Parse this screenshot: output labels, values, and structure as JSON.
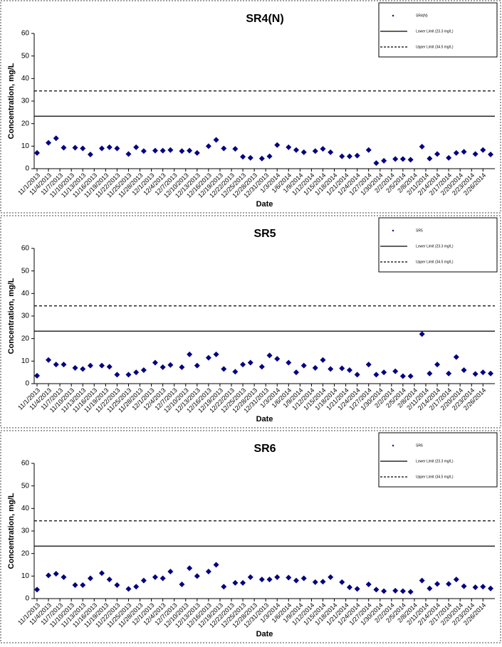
{
  "chart_data": [
    {
      "type": "scatter",
      "title": "SR4(N)",
      "xlabel": "Date",
      "ylabel": "Concentration, mg/L",
      "x": [
        "11/1/2013",
        "11/4/2013",
        "11/6/2013",
        "11/8/2013",
        "11/11/2013",
        "11/13/2013",
        "11/15/2013",
        "11/18/2013",
        "11/20/2013",
        "11/22/2013",
        "11/25/2013",
        "11/27/2013",
        "11/29/2013",
        "12/2/2013",
        "12/4/2013",
        "12/6/2013",
        "12/9/2013",
        "12/11/2013",
        "12/13/2013",
        "12/16/2013",
        "12/18/2013",
        "12/20/2013",
        "12/23/2013",
        "12/25/2013",
        "12/27/2013",
        "12/30/2013",
        "1/1/2014",
        "1/3/2014",
        "1/6/2014",
        "1/8/2014",
        "1/10/2014",
        "1/13/2014",
        "1/15/2014",
        "1/17/2014",
        "1/20/2014",
        "1/22/2014",
        "1/24/2014",
        "1/27/2014",
        "1/29/2014",
        "1/31/2014",
        "2/3/2014",
        "2/5/2014",
        "2/7/2014",
        "2/10/2014",
        "2/12/2014",
        "2/14/2014",
        "2/17/2014",
        "2/19/2014",
        "2/21/2014",
        "2/24/2014",
        "2/26/2014",
        "2/28/2014"
      ],
      "series": [
        {
          "name": "SR4(N)",
          "color": "#000080",
          "values": [
            7,
            11.5,
            13.5,
            9.3,
            9.3,
            9,
            6.3,
            9,
            9.5,
            9,
            6.5,
            9.5,
            7.8,
            8,
            8,
            8.3,
            7.8,
            8,
            7,
            10,
            12.8,
            9,
            8.8,
            5.3,
            4.8,
            4.5,
            5.5,
            10.5,
            9.5,
            8.3,
            7.3,
            7.8,
            8.8,
            7.3,
            5.5,
            5.5,
            5.8,
            8.3,
            2.5,
            3.5,
            4.3,
            4.3,
            4,
            9.8,
            4.5,
            6.5,
            4.8,
            7,
            7.5,
            6.5,
            8.3,
            6.3
          ]
        }
      ],
      "lines": [
        {
          "name": "Lower Limit (23.3 mg/L)",
          "value": 23.3,
          "style": "solid"
        },
        {
          "name": "Upper Limit (34.5 mg/L)",
          "value": 34.5,
          "style": "dashed"
        }
      ],
      "xlim": [
        "11/1/2013",
        "2/28/2014"
      ],
      "xticks": [
        "11/1/2013",
        "11/4/2013",
        "11/7/2013",
        "11/10/2013",
        "11/13/2013",
        "11/16/2013",
        "11/19/2013",
        "11/22/2013",
        "11/25/2013",
        "11/28/2013",
        "12/1/2013",
        "12/4/2013",
        "12/7/2013",
        "12/10/2013",
        "12/13/2013",
        "12/16/2013",
        "12/19/2013",
        "12/22/2013",
        "12/25/2013",
        "12/28/2013",
        "12/31/2013",
        "1/3/2014",
        "1/6/2014",
        "1/9/2014",
        "1/12/2014",
        "1/15/2014",
        "1/18/2014",
        "1/21/2014",
        "1/24/2014",
        "1/27/2014",
        "1/30/2014",
        "2/2/2014",
        "2/5/2014",
        "2/8/2014",
        "2/11/2014",
        "2/14/2014",
        "2/17/2014",
        "2/20/2014",
        "2/23/2014",
        "2/26/2014"
      ],
      "ylim": [
        0,
        60
      ],
      "yticks": [
        0,
        10,
        20,
        30,
        40,
        50,
        60
      ]
    },
    {
      "type": "scatter",
      "title": "SR5",
      "xlabel": "Date",
      "ylabel": "Concentration, mg/L",
      "x": [
        "11/1/2013",
        "11/4/2013",
        "11/6/2013",
        "11/8/2013",
        "11/11/2013",
        "11/13/2013",
        "11/15/2013",
        "11/18/2013",
        "11/20/2013",
        "11/22/2013",
        "11/25/2013",
        "11/27/2013",
        "11/29/2013",
        "12/2/2013",
        "12/4/2013",
        "12/6/2013",
        "12/9/2013",
        "12/11/2013",
        "12/13/2013",
        "12/16/2013",
        "12/18/2013",
        "12/20/2013",
        "12/23/2013",
        "12/25/2013",
        "12/27/2013",
        "12/30/2013",
        "1/1/2014",
        "1/3/2014",
        "1/6/2014",
        "1/8/2014",
        "1/10/2014",
        "1/13/2014",
        "1/15/2014",
        "1/17/2014",
        "1/20/2014",
        "1/22/2014",
        "1/24/2014",
        "1/27/2014",
        "1/29/2014",
        "1/31/2014",
        "2/3/2014",
        "2/5/2014",
        "2/7/2014",
        "2/10/2014",
        "2/12/2014",
        "2/14/2014",
        "2/17/2014",
        "2/19/2014",
        "2/21/2014",
        "2/24/2014",
        "2/26/2014",
        "2/28/2014"
      ],
      "series": [
        {
          "name": "SR5",
          "color": "#000080",
          "values": [
            3.5,
            10.5,
            8.5,
            8.5,
            7,
            6.5,
            8,
            8,
            7.5,
            4,
            4,
            5,
            6,
            9.3,
            7.3,
            8.3,
            7.3,
            13,
            8,
            11.5,
            13,
            6.5,
            5.3,
            8.5,
            9.3,
            7.5,
            12.5,
            11,
            9.3,
            5,
            8,
            7,
            10.5,
            6.5,
            6.8,
            6,
            4,
            8.5,
            4,
            5,
            5.5,
            3.3,
            3.3,
            22,
            4.5,
            8.5,
            4.5,
            11.8,
            6,
            4.3,
            5,
            4.5
          ]
        }
      ],
      "lines": [
        {
          "name": "Lower Limit (23.3 mg/L)",
          "value": 23.3,
          "style": "solid"
        },
        {
          "name": "Upper Limit (34.5 mg/L)",
          "value": 34.5,
          "style": "dashed"
        }
      ],
      "xlim": [
        "11/1/2013",
        "2/28/2014"
      ],
      "xticks": [
        "11/1/2013",
        "11/4/2013",
        "11/7/2013",
        "11/10/2013",
        "11/13/2013",
        "11/16/2013",
        "11/19/2013",
        "11/22/2013",
        "11/25/2013",
        "11/28/2013",
        "12/1/2013",
        "12/4/2013",
        "12/7/2013",
        "12/10/2013",
        "12/13/2013",
        "12/16/2013",
        "12/19/2013",
        "12/22/2013",
        "12/25/2013",
        "12/28/2013",
        "12/31/2013",
        "1/3/2014",
        "1/6/2014",
        "1/9/2014",
        "1/12/2014",
        "1/15/2014",
        "1/18/2014",
        "1/21/2014",
        "1/24/2014",
        "1/27/2014",
        "1/30/2014",
        "2/2/2014",
        "2/5/2014",
        "2/8/2014",
        "2/11/2014",
        "2/14/2014",
        "2/17/2014",
        "2/20/2014",
        "2/23/2014",
        "2/26/2014"
      ],
      "ylim": [
        0,
        60
      ],
      "yticks": [
        0,
        10,
        20,
        30,
        40,
        50,
        60
      ]
    },
    {
      "type": "scatter",
      "title": "SR6",
      "xlabel": "Date",
      "ylabel": "Concentration, mg/L",
      "x": [
        "11/1/2013",
        "11/4/2013",
        "11/6/2013",
        "11/8/2013",
        "11/11/2013",
        "11/13/2013",
        "11/15/2013",
        "11/18/2013",
        "11/20/2013",
        "11/22/2013",
        "11/25/2013",
        "11/27/2013",
        "11/29/2013",
        "12/2/2013",
        "12/4/2013",
        "12/6/2013",
        "12/9/2013",
        "12/11/2013",
        "12/13/2013",
        "12/16/2013",
        "12/18/2013",
        "12/20/2013",
        "12/23/2013",
        "12/25/2013",
        "12/27/2013",
        "12/30/2013",
        "1/1/2014",
        "1/3/2014",
        "1/6/2014",
        "1/8/2014",
        "1/10/2014",
        "1/13/2014",
        "1/15/2014",
        "1/17/2014",
        "1/20/2014",
        "1/22/2014",
        "1/24/2014",
        "1/27/2014",
        "1/29/2014",
        "1/31/2014",
        "2/3/2014",
        "2/5/2014",
        "2/7/2014",
        "2/10/2014",
        "2/12/2014",
        "2/14/2014",
        "2/17/2014",
        "2/19/2014",
        "2/21/2014",
        "2/24/2014",
        "2/26/2014",
        "2/28/2014"
      ],
      "series": [
        {
          "name": "SR6",
          "color": "#000080",
          "values": [
            4,
            10.3,
            11,
            9.5,
            6,
            6,
            9,
            11.3,
            8.5,
            6,
            4.3,
            5.3,
            8,
            9.5,
            9,
            12,
            6.3,
            13.5,
            10,
            12,
            15,
            5.3,
            7,
            7,
            9.5,
            8.5,
            8.5,
            9.5,
            9.3,
            8,
            9,
            7.3,
            7.5,
            9.5,
            7.3,
            5,
            4.3,
            6.3,
            4,
            3.3,
            3.5,
            3.3,
            3,
            8,
            4.5,
            6.5,
            6.5,
            8.5,
            5.5,
            5,
            5.3,
            4.5
          ]
        }
      ],
      "lines": [
        {
          "name": "Lower Limit (23.3 mg/L)",
          "value": 23.3,
          "style": "solid"
        },
        {
          "name": "Upper Limit (34.5 mg/L)",
          "value": 34.5,
          "style": "dashed"
        }
      ],
      "xlim": [
        "11/1/2013",
        "2/28/2014"
      ],
      "xticks": [
        "11/1/2013",
        "11/4/2013",
        "11/7/2013",
        "11/10/2013",
        "11/13/2013",
        "11/16/2013",
        "11/19/2013",
        "11/22/2013",
        "11/25/2013",
        "11/28/2013",
        "12/1/2013",
        "12/4/2013",
        "12/7/2013",
        "12/10/2013",
        "12/13/2013",
        "12/16/2013",
        "12/19/2013",
        "12/22/2013",
        "12/25/2013",
        "12/28/2013",
        "12/31/2013",
        "1/3/2014",
        "1/6/2014",
        "1/9/2014",
        "1/12/2014",
        "1/15/2014",
        "1/18/2014",
        "1/21/2014",
        "1/24/2014",
        "1/27/2014",
        "1/30/2014",
        "2/2/2014",
        "2/5/2014",
        "2/8/2014",
        "2/11/2014",
        "2/14/2014",
        "2/17/2014",
        "2/20/2014",
        "2/23/2014",
        "2/26/2014"
      ],
      "ylim": [
        0,
        60
      ],
      "yticks": [
        0,
        10,
        20,
        30,
        40,
        50,
        60
      ]
    }
  ]
}
